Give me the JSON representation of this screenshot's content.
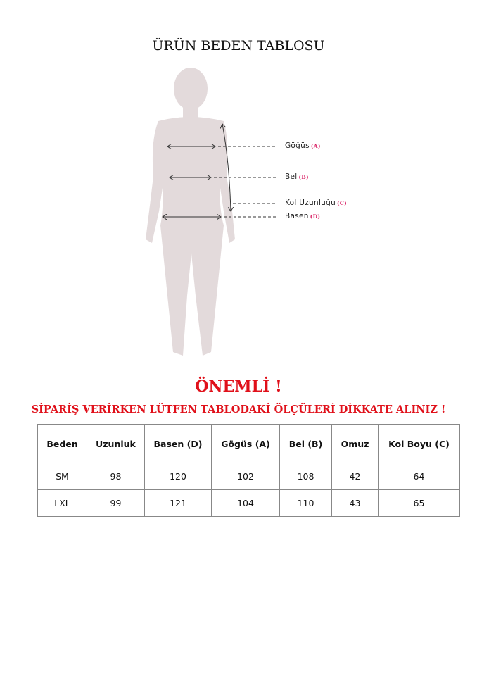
{
  "title": "ÜRÜN BEDEN TABLOSU",
  "figure": {
    "labels": [
      {
        "name": "Göğüs",
        "code": "(A)"
      },
      {
        "name": "Bel",
        "code": "(B)"
      },
      {
        "name": "Kol Uzunluğu",
        "code": "(C)"
      },
      {
        "name": "Basen",
        "code": "(D)"
      }
    ],
    "silhouette_color": "#e3dadb",
    "code_color": "#d81b60"
  },
  "important": "ÖNEMLİ !",
  "notice": "SİPARİŞ VERİRKEN LÜTFEN TABLODAKİ ÖLÇÜLERİ DİKKATE ALINIZ !",
  "accent_color": "#e0101a",
  "table": {
    "headers": [
      "Beden",
      "Uzunluk",
      "Basen (D)",
      "Gögüs (A)",
      "Bel (B)",
      "Omuz",
      "Kol Boyu (C)"
    ],
    "rows": [
      [
        "SM",
        "98",
        "120",
        "102",
        "108",
        "42",
        "64"
      ],
      [
        "LXL",
        "99",
        "121",
        "104",
        "110",
        "43",
        "65"
      ]
    ]
  }
}
